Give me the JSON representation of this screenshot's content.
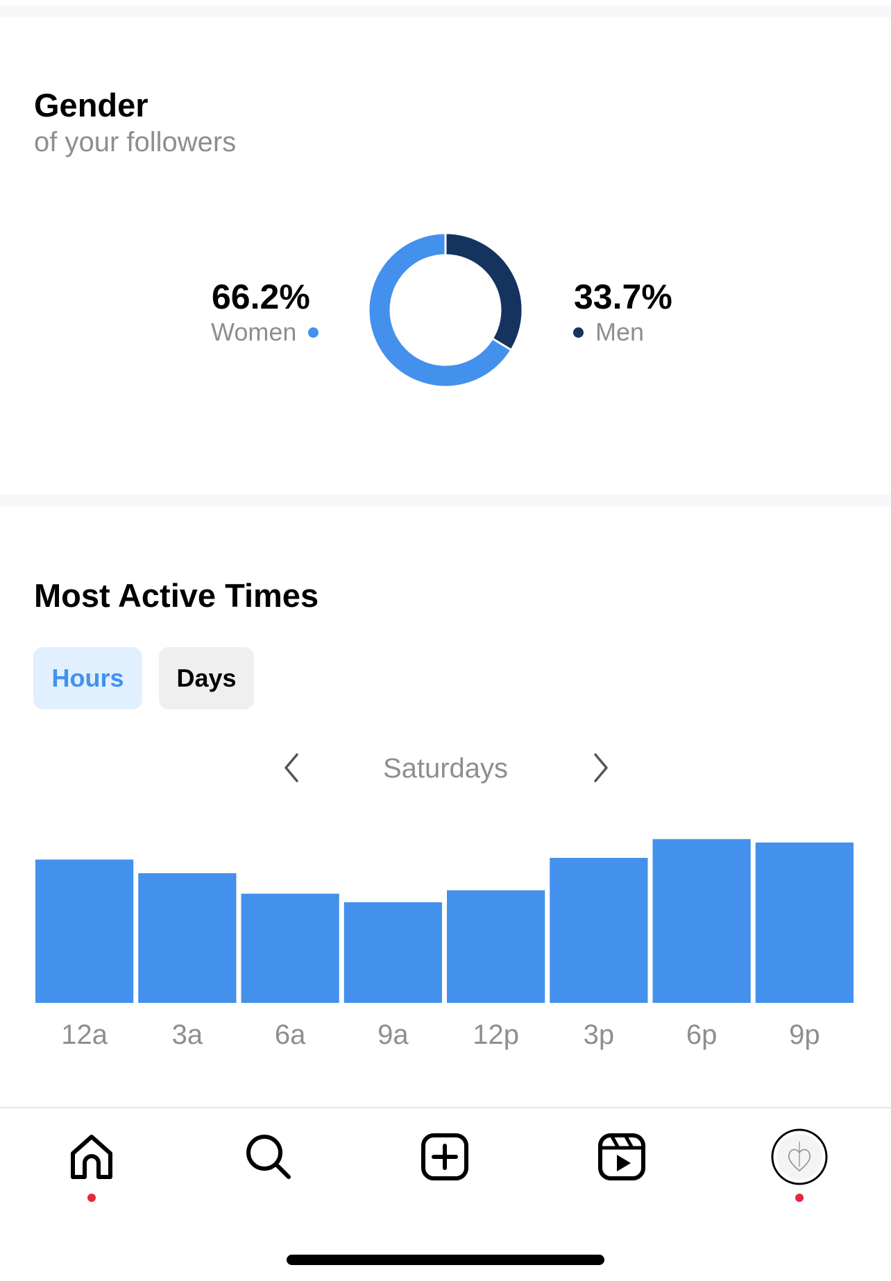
{
  "gender": {
    "title": "Gender",
    "subtitle": "of your followers",
    "women": {
      "percent": "66.2%",
      "label": "Women",
      "color": "#4391ec"
    },
    "men": {
      "percent": "33.7%",
      "label": "Men",
      "color": "#15335f"
    }
  },
  "active_times": {
    "title": "Most Active Times",
    "tabs": {
      "hours": "Hours",
      "days": "Days",
      "selected": "Hours"
    },
    "day_label": "Saturdays",
    "prev_icon": "chevron-left-icon",
    "next_icon": "chevron-right-icon"
  },
  "chart_data": {
    "type": "bar",
    "categories": [
      "12a",
      "3a",
      "6a",
      "9a",
      "12p",
      "3p",
      "6p",
      "9p"
    ],
    "values": [
      84,
      76,
      64,
      59,
      66,
      85,
      96,
      94
    ],
    "ylim": [
      0,
      100
    ],
    "grid": false,
    "color": "#4391ec"
  },
  "bottom_nav": {
    "items": [
      {
        "icon": "home-icon",
        "has_badge": true
      },
      {
        "icon": "search-icon",
        "has_badge": false
      },
      {
        "icon": "create-post-icon",
        "has_badge": false
      },
      {
        "icon": "reels-icon",
        "has_badge": false
      },
      {
        "icon": "profile-avatar",
        "has_badge": true
      }
    ],
    "badge_color": "#e6283f"
  }
}
